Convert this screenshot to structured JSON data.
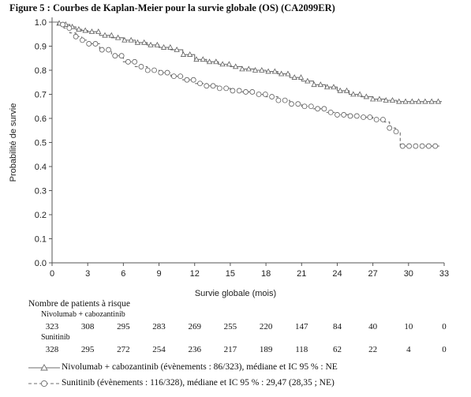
{
  "figure_title": "Figure 5 : Courbes de Kaplan-Meier pour la survie globale (OS) (CA2099ER)",
  "chart_data": {
    "type": "line",
    "xlabel": "Survie globale (mois)",
    "ylabel": "Probabilité de survie",
    "xlim": [
      0,
      33
    ],
    "ylim": [
      0,
      1
    ],
    "x_ticks": [
      "0",
      "3",
      "6",
      "9",
      "12",
      "15",
      "18",
      "21",
      "24",
      "27",
      "30",
      "33"
    ],
    "y_ticks": [
      "0.0",
      "0.1",
      "0.2",
      "0.3",
      "0.4",
      "0.5",
      "0.6",
      "0.7",
      "0.8",
      "0.9",
      "1.0"
    ],
    "grid": false,
    "series": [
      {
        "name": "Nivolumab + cabozantinib (évènements : 86/323), médiane et IC 95 % : NE",
        "line": "solid",
        "marker": "triangle",
        "color": "#6e6e6e",
        "x": [
          0,
          0.5,
          1,
          1.5,
          2,
          2.5,
          3,
          4,
          5,
          6,
          7,
          8,
          9,
          10,
          11,
          12,
          13,
          14,
          15,
          16,
          17,
          18,
          19,
          20,
          21,
          22,
          23,
          24,
          25,
          26,
          27,
          28,
          29,
          30,
          31,
          32,
          32.8
        ],
        "y": [
          1.0,
          0.995,
          0.99,
          0.98,
          0.97,
          0.965,
          0.96,
          0.945,
          0.935,
          0.925,
          0.915,
          0.905,
          0.895,
          0.885,
          0.865,
          0.845,
          0.835,
          0.825,
          0.815,
          0.805,
          0.8,
          0.795,
          0.785,
          0.77,
          0.755,
          0.74,
          0.73,
          0.715,
          0.7,
          0.69,
          0.68,
          0.675,
          0.67,
          0.67,
          0.67,
          0.67,
          0.67
        ]
      },
      {
        "name": "Sunitinib (évènements : 116/328), médiane et IC 95 % : 29,47 (28,35 ; NE)",
        "line": "dashed",
        "marker": "circle",
        "color": "#6e6e6e",
        "x": [
          0,
          0.5,
          1,
          1.5,
          2,
          2.5,
          3,
          4,
          5,
          6,
          7,
          8,
          9,
          10,
          11,
          12,
          13,
          14,
          15,
          16,
          17,
          18,
          19,
          20,
          21,
          22,
          23,
          24,
          25,
          26,
          27,
          28,
          28.4,
          28.9,
          29.3,
          30,
          31,
          32,
          32.6
        ],
        "y": [
          1.0,
          0.99,
          0.975,
          0.955,
          0.94,
          0.925,
          0.91,
          0.885,
          0.86,
          0.835,
          0.815,
          0.8,
          0.79,
          0.775,
          0.76,
          0.745,
          0.735,
          0.725,
          0.715,
          0.71,
          0.7,
          0.69,
          0.675,
          0.66,
          0.65,
          0.64,
          0.625,
          0.615,
          0.61,
          0.605,
          0.595,
          0.585,
          0.56,
          0.545,
          0.485,
          0.485,
          0.485,
          0.485,
          0.485
        ]
      }
    ]
  },
  "risk_table": {
    "title": "Nombre de patients à risque",
    "time_points": [
      0,
      3,
      6,
      9,
      12,
      15,
      18,
      21,
      24,
      27,
      30,
      33
    ],
    "groups": [
      {
        "name": "Nivolumab + cabozantinib",
        "counts": [
          "323",
          "308",
          "295",
          "283",
          "269",
          "255",
          "220",
          "147",
          "84",
          "40",
          "10",
          "0"
        ]
      },
      {
        "name": "Sunitinib",
        "counts": [
          "328",
          "295",
          "272",
          "254",
          "236",
          "217",
          "189",
          "118",
          "62",
          "22",
          "4",
          "0"
        ]
      }
    ]
  },
  "legend": [
    {
      "text": "Nivolumab + cabozantinib (évènements : 86/323), médiane et IC 95 % : NE",
      "line": "solid",
      "marker": "triangle"
    },
    {
      "text": "Sunitinib (évènements : 116/328), médiane et IC 95 % : 29,47 (28,35 ; NE)",
      "line": "dashed",
      "marker": "circle"
    }
  ]
}
